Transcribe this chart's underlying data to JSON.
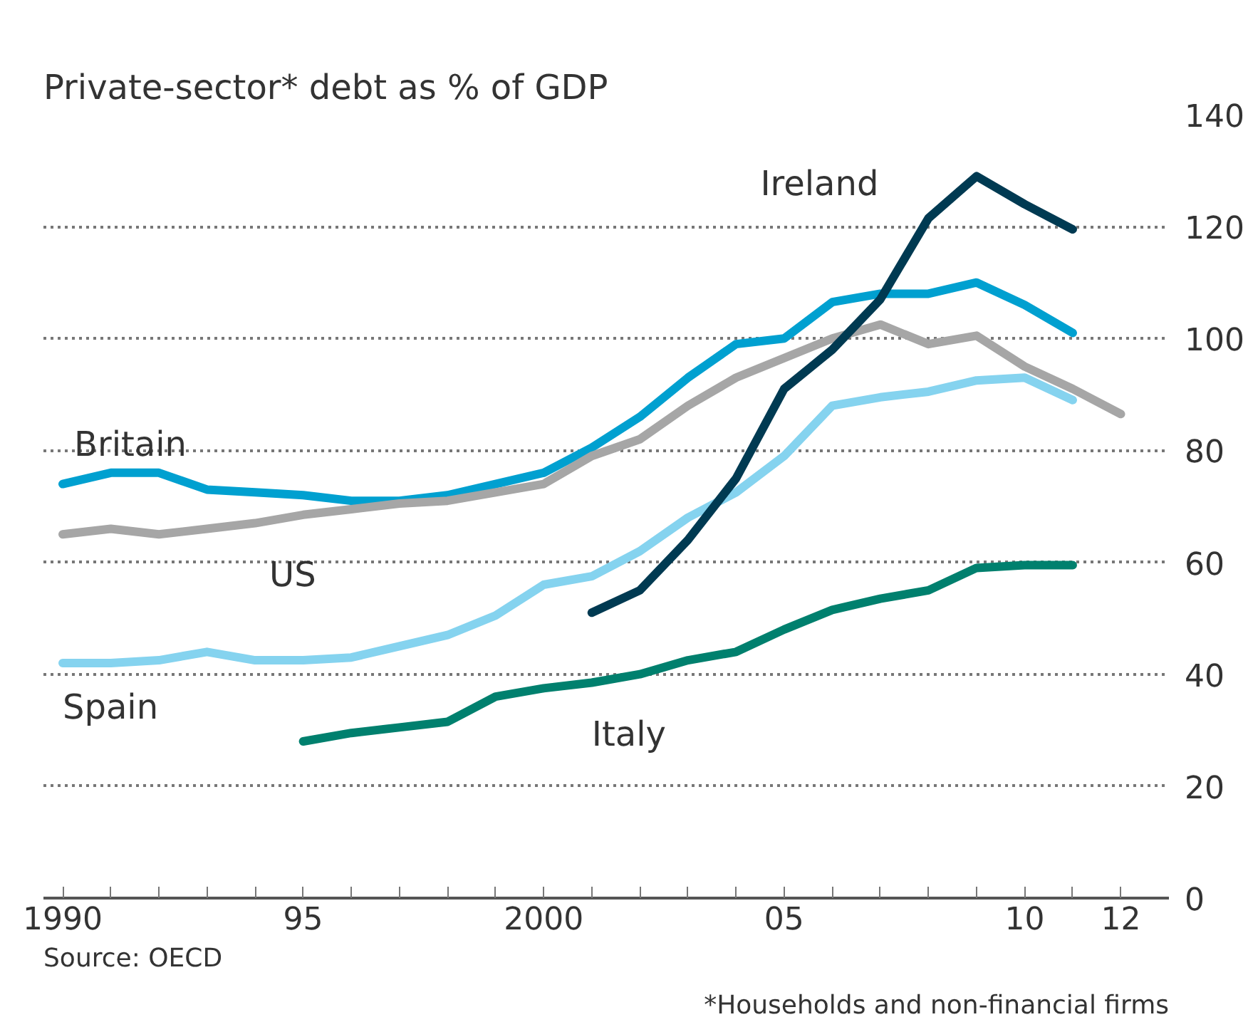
{
  "chart_data": {
    "type": "line",
    "title": "Private-sector* debt as % of GDP",
    "annotations": [
      "Source: OECD",
      "*Households and non-financial firms"
    ],
    "xlim": [
      1989.6,
      2013
    ],
    "ylim": [
      0,
      140
    ],
    "xticks": [
      1990,
      {
        "value": 1991,
        "label": null
      },
      {
        "value": 1992,
        "label": null
      },
      {
        "value": 1993,
        "label": null
      },
      {
        "value": 1994,
        "label": null
      },
      {
        "value": 1995,
        "label": "95"
      },
      {
        "value": 1996,
        "label": null
      },
      {
        "value": 1997,
        "label": null
      },
      {
        "value": 1998,
        "label": null
      },
      {
        "value": 1999,
        "label": null
      },
      2000,
      {
        "value": 2001,
        "label": null
      },
      {
        "value": 2002,
        "label": null
      },
      {
        "value": 2003,
        "label": null
      },
      {
        "value": 2004,
        "label": null
      },
      {
        "value": 2005,
        "label": "05"
      },
      {
        "value": 2006,
        "label": null
      },
      {
        "value": 2007,
        "label": null
      },
      {
        "value": 2008,
        "label": null
      },
      {
        "value": 2009,
        "label": null
      },
      {
        "value": 2010,
        "label": "10"
      },
      {
        "value": 2011,
        "label": null
      },
      {
        "value": 2012,
        "label": "12"
      }
    ],
    "yticks": [
      0,
      20,
      40,
      60,
      80,
      100,
      120,
      140
    ],
    "grid": "y",
    "legend": false,
    "marker": "none",
    "line_style": "solid",
    "series": [
      {
        "name": "Britain",
        "color": "#00a0d0",
        "x": [
          1990,
          1991,
          1992,
          1993,
          1994,
          1995,
          1996,
          1997,
          1998,
          1999,
          2000,
          2001,
          2002,
          2003,
          2004,
          2005,
          2006,
          2007,
          2008,
          2009,
          2010,
          2011
        ],
        "values": [
          74,
          76,
          76,
          73,
          72.5,
          72,
          71,
          71,
          72,
          74,
          76,
          80.5,
          86,
          93,
          99,
          100,
          106.5,
          108,
          108,
          110,
          106,
          101
        ]
      },
      {
        "name": "US",
        "color": "#a6a6a6",
        "x": [
          1990,
          1991,
          1992,
          1993,
          1994,
          1995,
          1996,
          1997,
          1998,
          1999,
          2000,
          2001,
          2002,
          2003,
          2004,
          2005,
          2006,
          2007,
          2008,
          2009,
          2010,
          2011,
          2012
        ],
        "values": [
          65,
          66,
          65,
          66,
          67,
          68.5,
          69.5,
          70.5,
          71,
          72.5,
          74,
          79,
          82,
          88,
          93,
          96.5,
          100,
          102.5,
          99,
          100.5,
          95,
          91,
          86.5
        ]
      },
      {
        "name": "Spain",
        "color": "#85d3ef",
        "x": [
          1990,
          1991,
          1992,
          1993,
          1994,
          1995,
          1996,
          1997,
          1998,
          1999,
          2000,
          2001,
          2002,
          2003,
          2004,
          2005,
          2006,
          2007,
          2008,
          2009,
          2010,
          2011
        ],
        "values": [
          42,
          42,
          42.5,
          44,
          42.5,
          42.5,
          43,
          45,
          47,
          50.5,
          56,
          57.5,
          62,
          68,
          72.5,
          79,
          88,
          89.5,
          90.5,
          92.5,
          93,
          89
        ]
      },
      {
        "name": "Ireland",
        "color": "#003a52",
        "x": [
          2001,
          2002,
          2003,
          2004,
          2005,
          2006,
          2007,
          2008,
          2009,
          2010,
          2011
        ],
        "values": [
          51,
          55,
          64,
          75,
          91,
          98,
          107,
          121.5,
          129,
          124,
          119.5
        ]
      },
      {
        "name": "Italy",
        "color": "#00806e",
        "x": [
          1995,
          1996,
          1997,
          1998,
          1999,
          2000,
          2001,
          2002,
          2003,
          2004,
          2005,
          2006,
          2007,
          2008,
          2009,
          2010,
          2011
        ],
        "values": [
          28,
          29.5,
          30.5,
          31.5,
          36,
          37.5,
          38.5,
          40,
          42.5,
          44,
          48,
          51.5,
          53.5,
          55,
          59,
          59.5,
          59.5
        ]
      }
    ]
  }
}
